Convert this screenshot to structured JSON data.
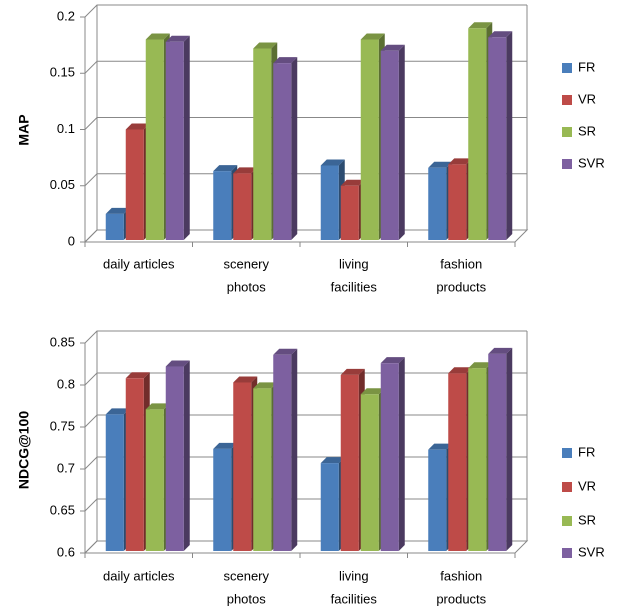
{
  "chart_data": [
    {
      "type": "bar3d",
      "ylabel": "MAP",
      "categories": [
        [
          "daily articles"
        ],
        [
          "scenery",
          "photos"
        ],
        [
          "living",
          "facilities"
        ],
        [
          "fashion",
          "products"
        ]
      ],
      "series": [
        {
          "name": "FR",
          "color": "#4a7ebb",
          "values": [
            0.025,
            0.063,
            0.068,
            0.066
          ]
        },
        {
          "name": "VR",
          "color": "#be4b48",
          "values": [
            0.1,
            0.061,
            0.05,
            0.069
          ]
        },
        {
          "name": "SR",
          "color": "#98b954",
          "values": [
            0.18,
            0.172,
            0.18,
            0.19
          ]
        },
        {
          "name": "SVR",
          "color": "#7d60a0",
          "values": [
            0.178,
            0.159,
            0.17,
            0.182
          ]
        }
      ],
      "ylim": [
        0,
        0.2
      ],
      "yticks": [
        0,
        0.05,
        0.1,
        0.15,
        0.2
      ],
      "grid": true,
      "legend": "right"
    },
    {
      "type": "bar3d",
      "ylabel": "NDCG@100",
      "categories": [
        [
          "daily articles"
        ],
        [
          "scenery",
          "photos"
        ],
        [
          "living",
          "facilities"
        ],
        [
          "fashion",
          "products"
        ]
      ],
      "series": [
        {
          "name": "FR",
          "color": "#4a7ebb",
          "values": [
            0.765,
            0.724,
            0.707,
            0.723
          ]
        },
        {
          "name": "VR",
          "color": "#be4b48",
          "values": [
            0.808,
            0.803,
            0.812,
            0.814
          ]
        },
        {
          "name": "SR",
          "color": "#98b954",
          "values": [
            0.771,
            0.796,
            0.789,
            0.82
          ]
        },
        {
          "name": "SVR",
          "color": "#7d60a0",
          "values": [
            0.822,
            0.836,
            0.826,
            0.837
          ]
        }
      ],
      "ylim": [
        0.6,
        0.85
      ],
      "yticks": [
        0.6,
        0.65,
        0.7,
        0.75,
        0.8,
        0.85
      ],
      "grid": true,
      "legend": "right"
    }
  ]
}
